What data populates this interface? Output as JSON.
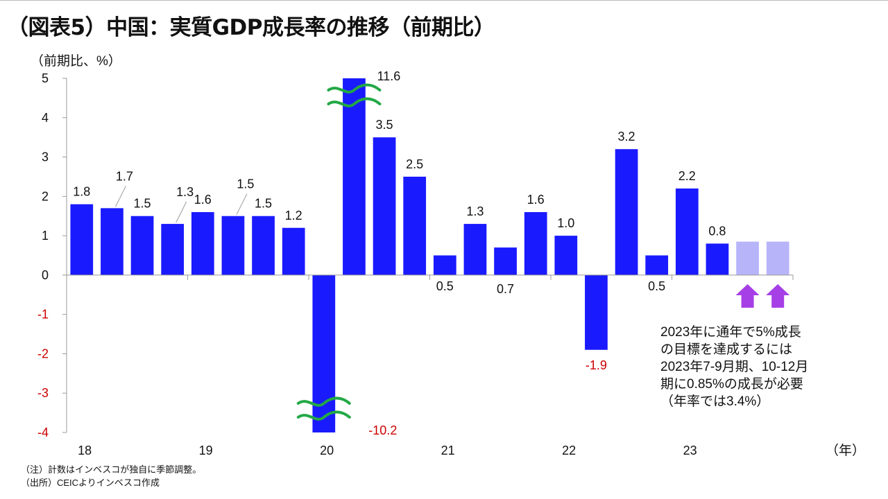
{
  "title": "（図表5）中国：実質GDP成長率の推移（前期比）",
  "unit_label": "（前期比、%）",
  "year_unit_label": "（年）",
  "notes": [
    "（注）計数はインベスコが独自に季節調整。",
    "（出所）CEICよりインベスコ作成"
  ],
  "annotation_lines": [
    "2023年に通年で5%成長",
    "の目標を達成するには",
    "2023年7-9月期、10-12月",
    "期に0.85%の成長が必要",
    "（年率では3.4%）"
  ],
  "colors": {
    "bar": "#1a1aff",
    "projection_bar": "#b8b4fa",
    "negative_text": "#cc0000",
    "break_mark": "#22a845",
    "arrow": "#a63fe6",
    "axis": "#999999"
  },
  "chart_data": {
    "type": "bar",
    "title": "（図表5）中国：実質GDP成長率の推移（前期比）",
    "xlabel": "（年）",
    "ylabel": "（前期比、%）",
    "ylim": [
      -4,
      5
    ],
    "yticks": [
      5,
      4,
      3,
      2,
      1,
      0,
      -1,
      -2,
      -3,
      -4
    ],
    "year_labels": [
      "18",
      "19",
      "20",
      "21",
      "22",
      "23"
    ],
    "categories": [
      "18Q1",
      "18Q2",
      "18Q3",
      "18Q4",
      "19Q1",
      "19Q2",
      "19Q3",
      "19Q4",
      "20Q1",
      "20Q2",
      "20Q3",
      "20Q4",
      "21Q1",
      "21Q2",
      "21Q3",
      "21Q4",
      "22Q1",
      "22Q2",
      "22Q3",
      "22Q4",
      "23Q1",
      "23Q2",
      "23Q3",
      "23Q4"
    ],
    "values": [
      1.8,
      1.7,
      1.5,
      1.3,
      1.6,
      1.5,
      1.5,
      1.2,
      -10.2,
      11.6,
      3.5,
      2.5,
      0.5,
      1.3,
      0.7,
      1.6,
      1.0,
      -1.9,
      3.2,
      0.5,
      2.2,
      0.8,
      0.85,
      0.85
    ],
    "labels": [
      "1.8",
      "1.7",
      "1.5",
      "1.3",
      "1.6",
      "1.5",
      "1.5",
      "1.2",
      "-10.2",
      "11.6",
      "3.5",
      "2.5",
      "0.5",
      "1.3",
      "0.7",
      "1.6",
      "1.0",
      "-1.9",
      "3.2",
      "0.5",
      "2.2",
      "0.8",
      "",
      ""
    ],
    "projected": [
      false,
      false,
      false,
      false,
      false,
      false,
      false,
      false,
      false,
      false,
      false,
      false,
      false,
      false,
      false,
      false,
      false,
      false,
      false,
      false,
      false,
      false,
      true,
      true
    ],
    "axis_breaks": [
      "20Q1",
      "20Q2"
    ],
    "grid": false,
    "legend": "none"
  }
}
